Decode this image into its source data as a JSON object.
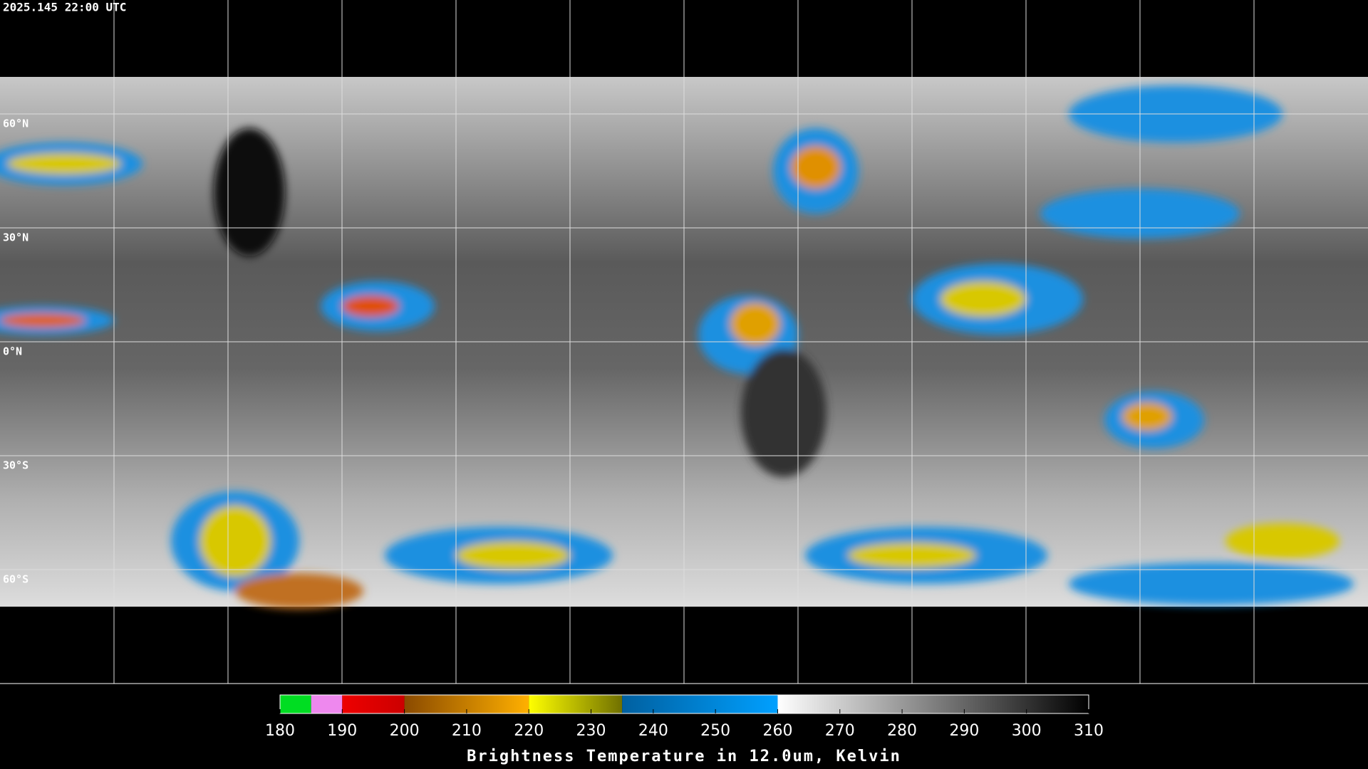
{
  "header": {
    "timestamp": "2025.145 22:00 UTC"
  },
  "map": {
    "latitude_labels": [
      "60°N",
      "30°N",
      "0°N",
      "30°S",
      "60°S"
    ]
  },
  "colorbar": {
    "lim": [
      180,
      310
    ],
    "ticks": [
      180,
      190,
      200,
      210,
      220,
      230,
      240,
      250,
      260,
      270,
      280,
      290,
      300,
      310
    ],
    "segments": [
      {
        "range": [
          180,
          185
        ],
        "colors": [
          "#00dd22",
          "#00dd22"
        ]
      },
      {
        "range": [
          185,
          190
        ],
        "colors": [
          "#ee88ee",
          "#ee88ee"
        ]
      },
      {
        "range": [
          190,
          200
        ],
        "colors": [
          "#ee0000",
          "#cc0000"
        ]
      },
      {
        "range": [
          200,
          220
        ],
        "colors": [
          "#8a4a00",
          "#ffb000"
        ]
      },
      {
        "range": [
          220,
          235
        ],
        "colors": [
          "#ffff00",
          "#707000"
        ]
      },
      {
        "range": [
          235,
          260
        ],
        "colors": [
          "#0060a0",
          "#00a0ff"
        ]
      },
      {
        "range": [
          260,
          310
        ],
        "colors": [
          "#ffffff",
          "#000000"
        ]
      }
    ],
    "label": "Brightness Temperature in 12.0um, Kelvin"
  }
}
